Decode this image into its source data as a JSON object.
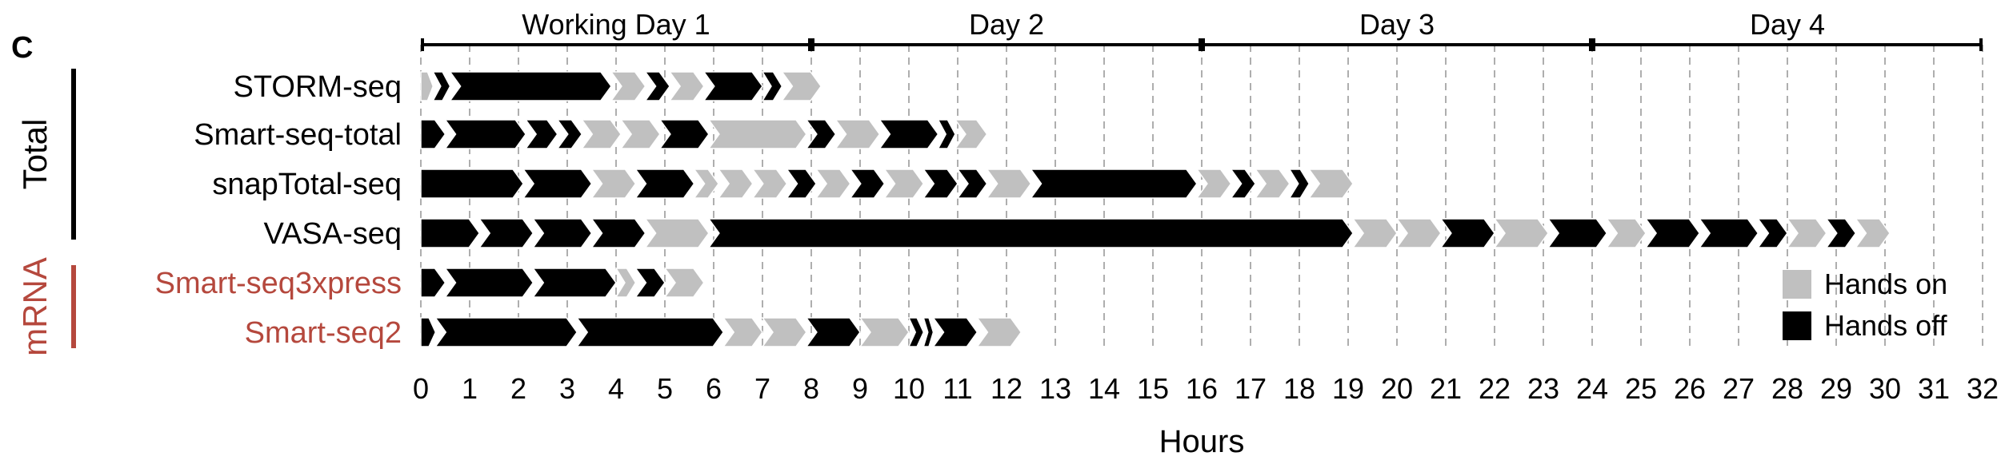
{
  "panel_label": "C",
  "colors": {
    "hands_on": "#c0c0c0",
    "hands_off": "#000000",
    "total_bar": "#000000",
    "mrna": "#b5483d",
    "grid": "#9a9a9a"
  },
  "chart_data": {
    "type": "gantt",
    "xlabel": "Hours",
    "xlim": [
      0,
      32
    ],
    "xticks": [
      "0",
      "1",
      "2",
      "3",
      "4",
      "5",
      "6",
      "7",
      "8",
      "9",
      "10",
      "11",
      "12",
      "13",
      "14",
      "15",
      "16",
      "17",
      "18",
      "19",
      "20",
      "21",
      "22",
      "23",
      "24",
      "25",
      "26",
      "27",
      "28",
      "29",
      "30",
      "31",
      "32"
    ],
    "grid": true,
    "days": [
      {
        "label": "Working Day 1",
        "start": 0,
        "end": 8
      },
      {
        "label": "Day 2",
        "start": 8,
        "end": 16
      },
      {
        "label": "Day 3",
        "start": 16,
        "end": 24
      },
      {
        "label": "Day 4",
        "start": 24,
        "end": 32
      }
    ],
    "groups": [
      {
        "label": "Total",
        "rows": [
          "STORM-seq",
          "Smart-seq-total",
          "snapTotal-seq",
          "VASA-seq"
        ]
      },
      {
        "label": "mRNA",
        "rows": [
          "Smart-seq3xpress",
          "Smart-seq2"
        ]
      }
    ],
    "legend": {
      "placement": "right",
      "items": [
        {
          "key": "on",
          "label": "Hands on"
        },
        {
          "key": "off",
          "label": "Hands off"
        }
      ]
    },
    "series": [
      {
        "name": "STORM-seq",
        "group": "Total",
        "steps": [
          [
            "on",
            0,
            0.25
          ],
          [
            "off",
            0.25,
            0.6
          ],
          [
            "off",
            0.6,
            3.9
          ],
          [
            "on",
            3.9,
            4.6
          ],
          [
            "off",
            4.6,
            5.1
          ],
          [
            "on",
            5.1,
            5.8
          ],
          [
            "off",
            5.8,
            7.0
          ],
          [
            "off",
            7.0,
            7.4
          ],
          [
            "on",
            7.4,
            8.2
          ]
        ]
      },
      {
        "name": "Smart-seq-total",
        "group": "Total",
        "steps": [
          [
            "off",
            0,
            0.5
          ],
          [
            "off",
            0.5,
            2.15
          ],
          [
            "off",
            2.15,
            2.8
          ],
          [
            "off",
            2.8,
            3.3
          ],
          [
            "on",
            3.3,
            4.1
          ],
          [
            "on",
            4.1,
            4.9
          ],
          [
            "off",
            4.9,
            5.9
          ],
          [
            "on",
            5.9,
            7.9
          ],
          [
            "off",
            7.9,
            8.5
          ],
          [
            "on",
            8.5,
            9.4
          ],
          [
            "off",
            9.4,
            10.6
          ],
          [
            "off",
            10.6,
            10.95
          ],
          [
            "on",
            10.95,
            11.6
          ]
        ]
      },
      {
        "name": "snapTotal-seq",
        "group": "Total",
        "steps": [
          [
            "off",
            0,
            2.1
          ],
          [
            "off",
            2.1,
            3.5
          ],
          [
            "on",
            3.5,
            4.4
          ],
          [
            "off",
            4.4,
            5.6
          ],
          [
            "on",
            5.6,
            6.1
          ],
          [
            "on",
            6.1,
            6.8
          ],
          [
            "on",
            6.8,
            7.5
          ],
          [
            "off",
            7.5,
            8.1
          ],
          [
            "on",
            8.1,
            8.8
          ],
          [
            "off",
            8.8,
            9.5
          ],
          [
            "on",
            9.5,
            10.3
          ],
          [
            "off",
            10.3,
            11.0
          ],
          [
            "off",
            11.0,
            11.6
          ],
          [
            "on",
            11.6,
            12.5
          ],
          [
            "off",
            12.5,
            15.9
          ],
          [
            "on",
            15.9,
            16.6
          ],
          [
            "off",
            16.6,
            17.1
          ],
          [
            "on",
            17.1,
            17.8
          ],
          [
            "off",
            17.8,
            18.2
          ],
          [
            "on",
            18.2,
            19.1
          ]
        ]
      },
      {
        "name": "VASA-seq",
        "group": "Total",
        "steps": [
          [
            "off",
            0,
            1.2
          ],
          [
            "off",
            1.2,
            2.3
          ],
          [
            "off",
            2.3,
            3.5
          ],
          [
            "off",
            3.5,
            4.6
          ],
          [
            "on",
            4.6,
            5.9
          ],
          [
            "off",
            5.9,
            19.1
          ],
          [
            "on",
            19.1,
            20.0
          ],
          [
            "on",
            20.0,
            20.9
          ],
          [
            "off",
            20.9,
            22.0
          ],
          [
            "on",
            22.0,
            23.1
          ],
          [
            "off",
            23.1,
            24.3
          ],
          [
            "on",
            24.3,
            25.1
          ],
          [
            "off",
            25.1,
            26.2
          ],
          [
            "off",
            26.2,
            27.4
          ],
          [
            "off",
            27.4,
            28.0
          ],
          [
            "on",
            28.0,
            28.8
          ],
          [
            "off",
            28.8,
            29.4
          ],
          [
            "on",
            29.4,
            30.1
          ]
        ]
      },
      {
        "name": "Smart-seq3xpress",
        "group": "mRNA",
        "steps": [
          [
            "off",
            0,
            0.5
          ],
          [
            "off",
            0.5,
            2.3
          ],
          [
            "off",
            2.3,
            4.0
          ],
          [
            "on",
            4.0,
            4.4
          ],
          [
            "off",
            4.4,
            5.0
          ],
          [
            "on",
            5.0,
            5.8
          ]
        ]
      },
      {
        "name": "Smart-seq2",
        "group": "mRNA",
        "steps": [
          [
            "off",
            0,
            0.3
          ],
          [
            "off",
            0.3,
            3.2
          ],
          [
            "off",
            3.2,
            6.2
          ],
          [
            "on",
            6.2,
            7.0
          ],
          [
            "on",
            7.0,
            7.9
          ],
          [
            "off",
            7.9,
            9.0
          ],
          [
            "on",
            9.0,
            10.0
          ],
          [
            "off",
            10.0,
            10.3
          ],
          [
            "off",
            10.3,
            10.5
          ],
          [
            "off",
            10.5,
            11.4
          ],
          [
            "on",
            11.4,
            12.3
          ]
        ]
      }
    ]
  }
}
